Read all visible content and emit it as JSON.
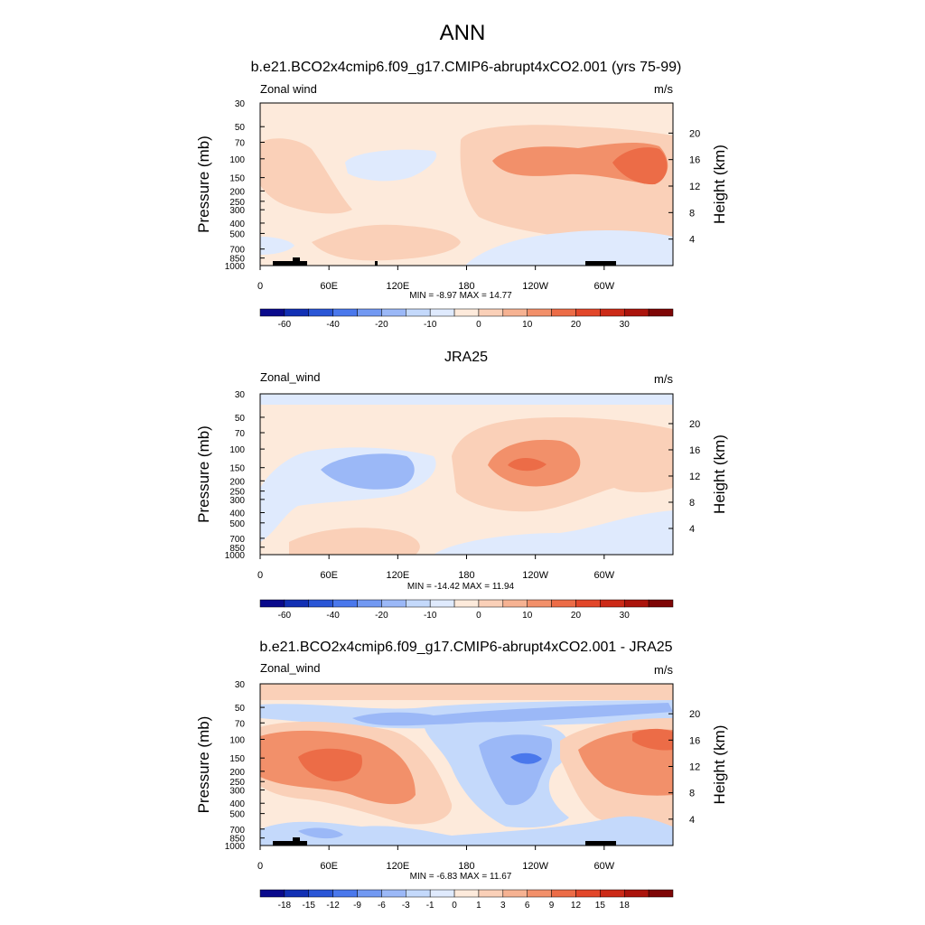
{
  "figure": {
    "title": "ANN",
    "x_ticks": [
      "0",
      "60E",
      "120E",
      "180",
      "120W",
      "60W"
    ],
    "y_ticks": [
      "30",
      "50",
      "70",
      "100",
      "150",
      "200",
      "250",
      "300",
      "400",
      "500",
      "700",
      "850",
      "1000"
    ],
    "height_ticks": [
      "20",
      "16",
      "12",
      "8",
      "4"
    ],
    "ylabel": "Pressure (mb)",
    "ylabel_right": "Height (km)"
  },
  "chart_data": [
    {
      "type": "heatmap",
      "title": "b.e21.BCO2x4cmip6.f09_g17.CMIP6-abrupt4xCO2.001 (yrs 75-99)",
      "field_label": "Zonal wind",
      "units": "m/s",
      "stats": "MIN =  -8.97  MAX =  14.77",
      "colorbar_ticks": [
        "-60",
        "-40",
        "-20",
        "-10",
        "0",
        "10",
        "20",
        "30"
      ],
      "colorbar_colors": [
        "#0a0a8c",
        "#1230b4",
        "#2a56d6",
        "#4a78ec",
        "#7299f2",
        "#9bb8f7",
        "#c4d9fb",
        "#dfeafd",
        "#fdeadb",
        "#fad0b8",
        "#f6b292",
        "#f2906a",
        "#ec6c47",
        "#e2472a",
        "#cc2a17",
        "#ab140c",
        "#7e0606"
      ],
      "contours": [
        {
          "level": "-5 to 0",
          "color": "#dfeafd",
          "regions": [
            "tropopause easterlies 80E-160E",
            "near-surface tropics 180-60W"
          ]
        },
        {
          "level": "0 to 5",
          "color": "#fdeadb",
          "regions": [
            "background"
          ]
        },
        {
          "level": "5 to 10",
          "color": "#fad0b8",
          "regions": [
            "upper jet 170E-70W",
            "lower troposphere 50E-140E"
          ]
        },
        {
          "level": "10 to 15",
          "color": "#f2906a",
          "regions": [
            "jet core 150W-90W",
            "jet core 70W-40W"
          ]
        },
        {
          "level": "max 14.77",
          "color": "#ec6c47",
          "regions": [
            "jet maximum near 45W, 100-150 mb"
          ]
        }
      ]
    },
    {
      "type": "heatmap",
      "title": "JRA25",
      "field_label": "Zonal_wind",
      "units": "m/s",
      "stats": "MIN = -14.42  MAX =  11.94",
      "colorbar_ticks": [
        "-60",
        "-40",
        "-20",
        "-10",
        "0",
        "10",
        "20",
        "30"
      ],
      "colorbar_colors": [
        "#0a0a8c",
        "#1230b4",
        "#2a56d6",
        "#4a78ec",
        "#7299f2",
        "#9bb8f7",
        "#c4d9fb",
        "#dfeafd",
        "#fdeadb",
        "#fad0b8",
        "#f6b292",
        "#f2906a",
        "#ec6c47",
        "#e2472a",
        "#cc2a17",
        "#ab140c",
        "#7e0606"
      ],
      "contours": [
        {
          "level": "-5 to 0",
          "color": "#dfeafd",
          "regions": [
            "top layer 30 mb",
            "western tropics 0-130E",
            "lower troposphere 180-0"
          ]
        },
        {
          "level": "-10 to -5",
          "color": "#9bb8f7",
          "regions": [
            "easterly core 50E-130E, 150 mb"
          ]
        },
        {
          "level": "0 to 5",
          "color": "#fdeadb",
          "regions": [
            "background"
          ]
        },
        {
          "level": "5 to 10",
          "color": "#fad0b8",
          "regions": [
            "westerly jet 160E-60W"
          ]
        },
        {
          "level": "10 to 15",
          "color": "#f2906a",
          "regions": [
            "jet core near 160W"
          ]
        },
        {
          "level": "max 11.94",
          "color": "#ec6c47",
          "regions": [
            "jet maximum near 150W, 150 mb"
          ]
        }
      ]
    },
    {
      "type": "heatmap",
      "title": "b.e21.BCO2x4cmip6.f09_g17.CMIP6-abrupt4xCO2.001 - JRA25",
      "field_label": "Zonal_wind",
      "units": "m/s",
      "stats": "MIN =  -6.83  MAX =  11.67",
      "colorbar_ticks": [
        "-18",
        "-15",
        "-12",
        "-9",
        "-6",
        "-3",
        "-1",
        "0",
        "1",
        "3",
        "6",
        "9",
        "12",
        "15",
        "18"
      ],
      "colorbar_colors": [
        "#0a0a8c",
        "#1230b4",
        "#2a56d6",
        "#4a78ec",
        "#7299f2",
        "#9bb8f7",
        "#c4d9fb",
        "#dfeafd",
        "#fdeadb",
        "#fad0b8",
        "#f6b292",
        "#f2906a",
        "#ec6c47",
        "#e2472a",
        "#cc2a17",
        "#ab140c",
        "#7e0606"
      ],
      "contours": [
        {
          "level": "1 to 3",
          "color": "#fad0b8",
          "regions": [
            "stratosphere 30 mb",
            "broad troposphere"
          ]
        },
        {
          "level": "-1 to -3",
          "color": "#c4d9fb",
          "regions": [
            "band near 50-70 mb",
            "central Pacific troposphere"
          ]
        },
        {
          "level": "-3 to -6",
          "color": "#9bb8f7",
          "regions": [
            "50 mb layer",
            "near 150W, 150 mb"
          ]
        },
        {
          "level": "3 to 6",
          "color": "#f2906a",
          "regions": [
            "0-120E troposphere",
            "western hemisphere upper"
          ]
        },
        {
          "level": "6 to 9",
          "color": "#ec6c47",
          "regions": [
            "core near 40E-90E, 150-200 mb"
          ]
        },
        {
          "level": "min -6.83",
          "color": "#4a78ec",
          "regions": [
            "near 150W, 150 mb"
          ]
        }
      ]
    }
  ]
}
